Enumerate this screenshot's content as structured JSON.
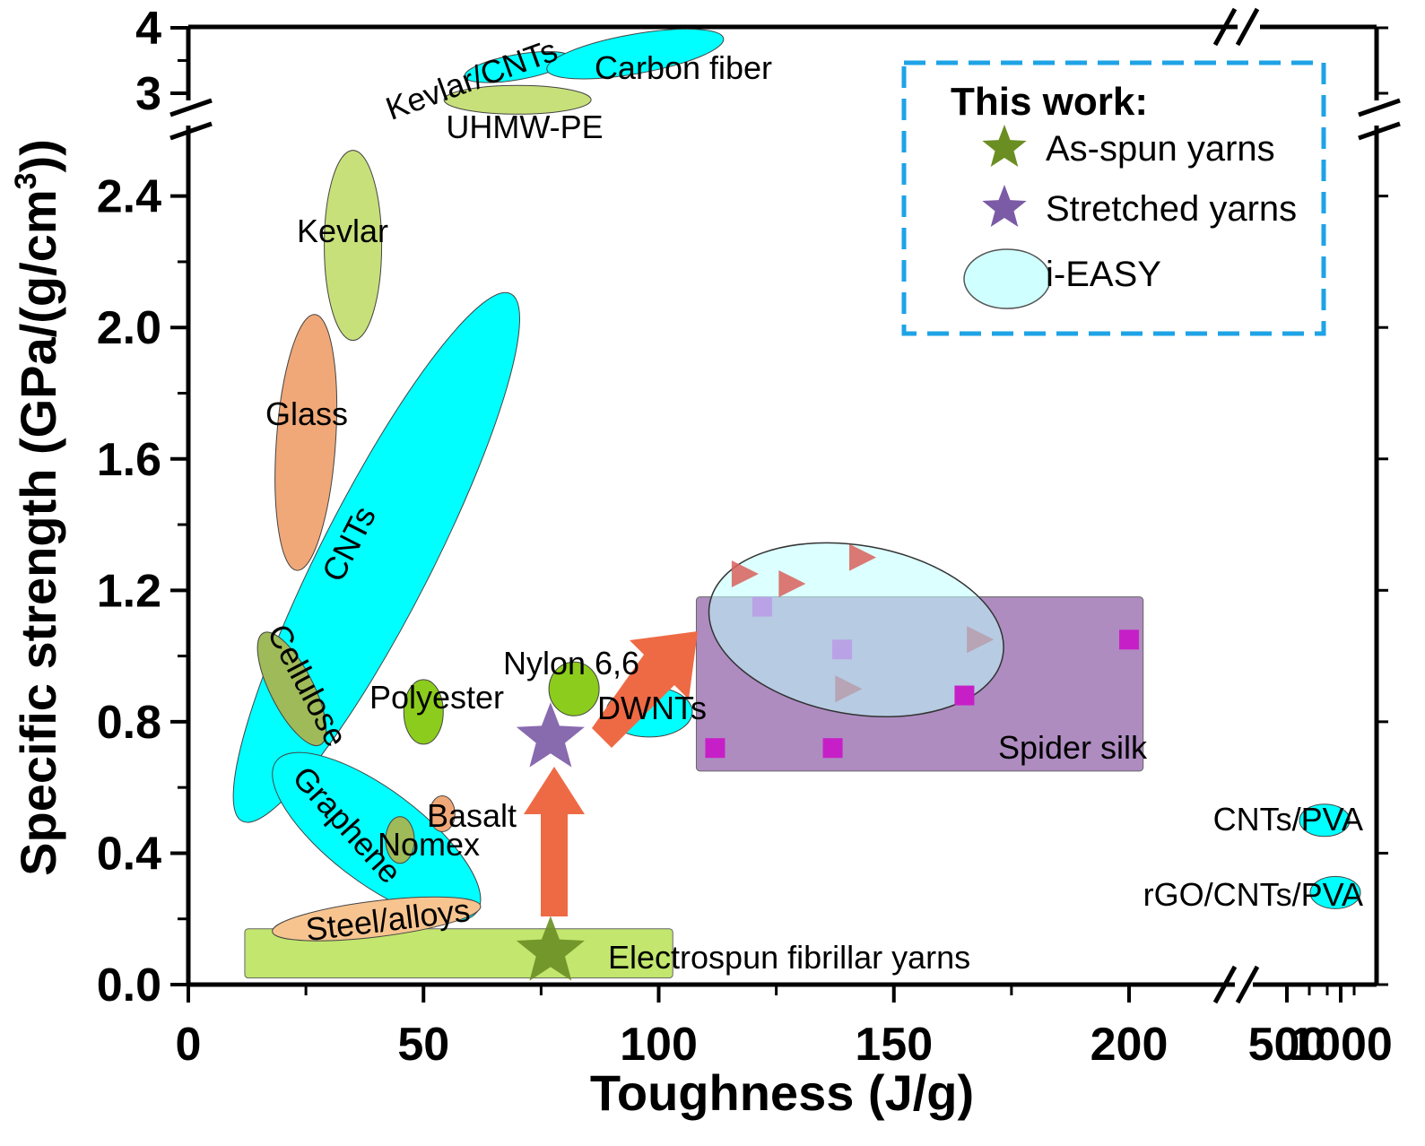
{
  "chart_data": {
    "type": "scatter",
    "title": "",
    "xlabel": "Toughness (J/g)",
    "ylabel_main": "Specific strength (GPa/(g/cm",
    "ylabel_sup": "3",
    "ylabel_end": "))",
    "x_ticks": [
      "0",
      "50",
      "100",
      "150",
      "200",
      "500",
      "1000"
    ],
    "y_ticks": [
      "0.0",
      "0.4",
      "0.8",
      "1.2",
      "1.6",
      "2.0",
      "2.4",
      "3",
      "4"
    ],
    "xlim": [
      0,
      1000
    ],
    "ylim": [
      0,
      4
    ],
    "axis_breaks": {
      "x": "between 200 and 500",
      "y": "between 2.4 and 3"
    },
    "regions": [
      {
        "name": "Kevlar/CNTs",
        "shape": "ellipse",
        "color": "#00ffff",
        "x": 70,
        "y": 3.4
      },
      {
        "name": "Carbon fiber",
        "shape": "ellipse",
        "color": "#00ffff",
        "x": 95,
        "y": 3.6
      },
      {
        "name": "UHMW-PE",
        "shape": "ellipse",
        "color": "#c7e07a",
        "x": 70,
        "y": 2.9
      },
      {
        "name": "Kevlar",
        "shape": "ellipse",
        "color": "#c7e07a",
        "x": 35,
        "y": 2.25
      },
      {
        "name": "Glass",
        "shape": "ellipse",
        "color": "#f0a878",
        "x": 25,
        "y": 1.65
      },
      {
        "name": "CNTs",
        "shape": "ellipse",
        "color": "#00ffff",
        "x": 40,
        "y": 1.3
      },
      {
        "name": "Cellulose",
        "shape": "ellipse",
        "color": "#9fba58",
        "x": 22,
        "y": 0.9
      },
      {
        "name": "Polyester",
        "shape": "ellipse",
        "color": "#8ccc1c",
        "x": 50,
        "y": 0.83
      },
      {
        "name": "Nylon 6,6",
        "shape": "ellipse",
        "color": "#8ccc1c",
        "x": 82,
        "y": 0.9
      },
      {
        "name": "DWNTs",
        "shape": "ellipse",
        "color": "#00ffff",
        "x": 98,
        "y": 0.83
      },
      {
        "name": "Basalt",
        "shape": "ellipse",
        "color": "#f0a878",
        "x": 54,
        "y": 0.52
      },
      {
        "name": "Nomex",
        "shape": "ellipse",
        "color": "#9fba58",
        "x": 45,
        "y": 0.44
      },
      {
        "name": "Graphene",
        "shape": "ellipse",
        "color": "#00ffff",
        "x": 40,
        "y": 0.45
      },
      {
        "name": "Steel/alloys",
        "shape": "ellipse",
        "color": "#f7c48f",
        "x": 40,
        "y": 0.2
      },
      {
        "name": "Electrospun fibrillar yarns",
        "shape": "rect",
        "color": "#c2e66e",
        "x": [
          12,
          103
        ],
        "y": [
          0.02,
          0.17
        ]
      },
      {
        "name": "Spider silk",
        "shape": "rect",
        "color": "#9a6fb0",
        "x": [
          108,
          203
        ],
        "y": [
          0.65,
          1.18
        ]
      },
      {
        "name": "CNTs/PVA",
        "shape": "ellipse",
        "color": "#00ffff",
        "x": 850,
        "y": 0.5
      },
      {
        "name": "rGO/CNTs/PVA",
        "shape": "ellipse",
        "color": "#00ffff",
        "x": 950,
        "y": 0.28
      }
    ],
    "series": [
      {
        "name": "As-spun yarns",
        "marker": "star",
        "color": "#6b8e23",
        "points": [
          {
            "x": 77,
            "y": 0.1
          }
        ]
      },
      {
        "name": "Stretched yarns",
        "marker": "star",
        "color": "#7b5aa6",
        "points": [
          {
            "x": 77,
            "y": 0.75
          }
        ]
      }
    ],
    "extra_points": {
      "triangles": {
        "color": "#d9605a",
        "points": [
          {
            "x": 118,
            "y": 1.25
          },
          {
            "x": 128,
            "y": 1.22
          },
          {
            "x": 143,
            "y": 1.3
          },
          {
            "x": 140,
            "y": 0.9
          },
          {
            "x": 168,
            "y": 1.05
          }
        ]
      },
      "squares_magenta": {
        "color": "#c71fc7",
        "points": [
          {
            "x": 112,
            "y": 0.72
          },
          {
            "x": 137,
            "y": 0.72
          },
          {
            "x": 165,
            "y": 0.88
          },
          {
            "x": 200,
            "y": 1.05
          }
        ]
      },
      "squares_light": {
        "color": "#b9a3e6",
        "points": [
          {
            "x": 122,
            "y": 1.15
          },
          {
            "x": 139,
            "y": 1.02
          }
        ]
      }
    },
    "i_easy_ellipse": {
      "x": 142,
      "y": 1.08
    },
    "legend": {
      "title": "This work:",
      "position": "top-right",
      "items": [
        {
          "label": "As-spun yarns",
          "color": "#6b8e23",
          "marker": "star"
        },
        {
          "label": "Stretched yarns",
          "color": "#7b5aa6",
          "marker": "star"
        },
        {
          "label": "i-EASY",
          "color": "#cfffff",
          "marker": "ellipse"
        }
      ]
    }
  }
}
